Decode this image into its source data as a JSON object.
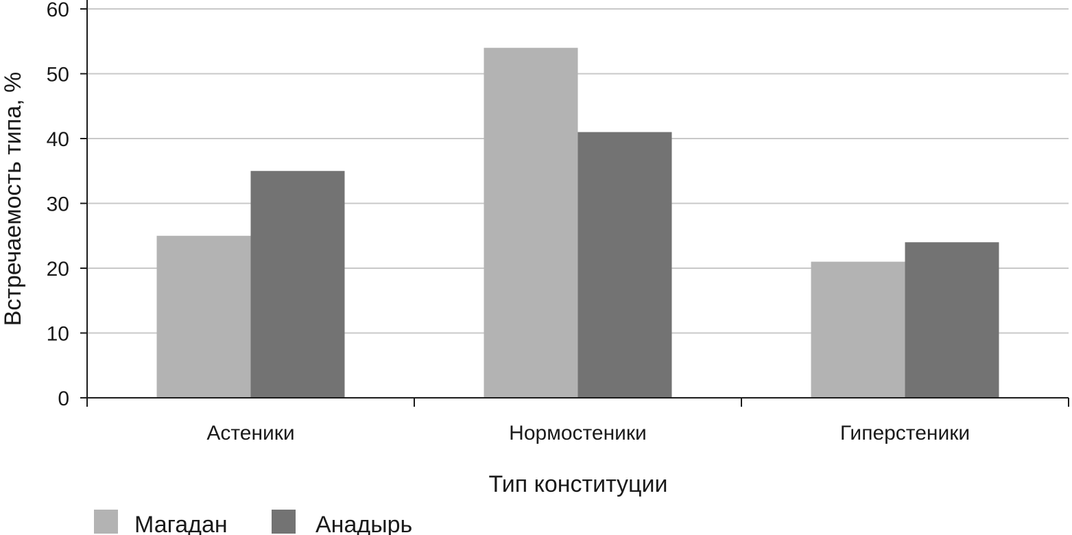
{
  "chart_data": {
    "type": "bar",
    "title": "",
    "xlabel": "Тип конституции",
    "ylabel": "Встречаемость типа, %",
    "categories": [
      "Астеники",
      "Нормостеники",
      "Гиперстеники"
    ],
    "series": [
      {
        "name": "Магадан",
        "color": "#b3b3b3",
        "values": [
          25,
          54,
          21
        ]
      },
      {
        "name": "Анадырь",
        "color": "#737373",
        "values": [
          35,
          41,
          24
        ]
      }
    ],
    "ylim": [
      0,
      60
    ],
    "yticks": [
      0,
      10,
      20,
      30,
      40,
      50,
      60
    ],
    "grid": true,
    "legend_position": "bottom-left"
  }
}
